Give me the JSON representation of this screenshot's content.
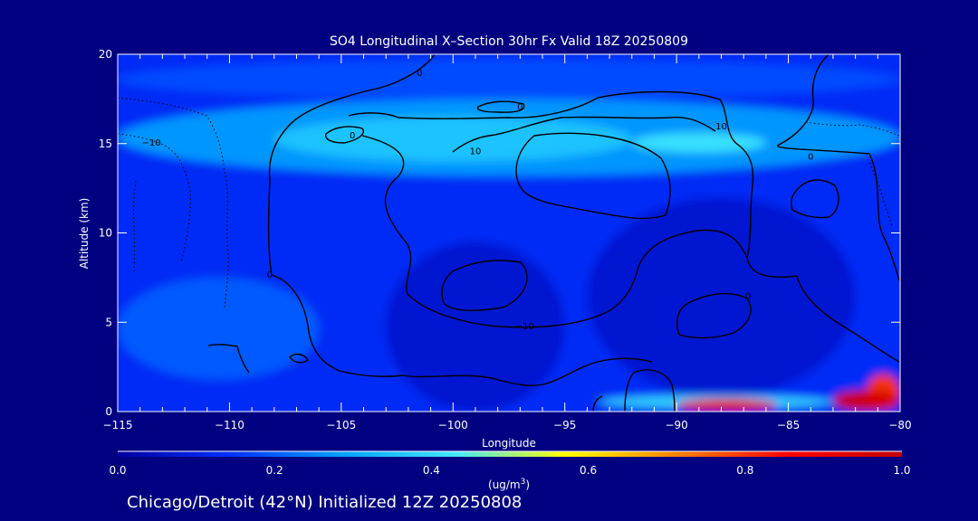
{
  "colors": {
    "background": "#000080",
    "text": "#FFFFFF",
    "contour": "#000000",
    "colorbar_stops": [
      "#0000A0",
      "#0030FF",
      "#00A0FF",
      "#40E8FF",
      "#FFFF00",
      "#FF8000",
      "#FF0000",
      "#C00000"
    ]
  },
  "chart_data": {
    "type": "heatmap",
    "title": "SO4 Longitudinal X–Section 30hr  Fx Valid 18Z 20250809",
    "xlabel": "Longitude",
    "ylabel": "Altitude (km)",
    "xlim": [
      -115,
      -80
    ],
    "ylim": [
      0,
      20
    ],
    "x_ticks": [
      -115,
      -110,
      -105,
      -100,
      -95,
      -90,
      -85,
      -80
    ],
    "x_tick_labels": [
      "−115",
      "−110",
      "−105",
      "−100",
      "−95",
      "−90",
      "−85",
      "−80"
    ],
    "y_ticks": [
      0,
      5,
      10,
      15,
      20
    ],
    "y_tick_labels": [
      "0",
      "5",
      "10",
      "15",
      "20"
    ],
    "colorbar": {
      "range": [
        0.0,
        1.0
      ],
      "ticks": [
        0.0,
        0.2,
        0.4,
        0.6,
        0.8,
        1.0
      ],
      "tick_labels": [
        "0.0",
        "0.2",
        "0.4",
        "0.6",
        "0.8",
        "1.0"
      ],
      "unit_label": "(ug/m",
      "unit_superscript": "3",
      "unit_close": ")"
    },
    "field_regions": [
      {
        "lon": [
          -115,
          -80
        ],
        "alt": [
          0,
          20
        ],
        "value": 0.13
      },
      {
        "lon": [
          -115,
          -80
        ],
        "alt": [
          13.2,
          17.5
        ],
        "value": 0.28
      },
      {
        "lon": [
          -108,
          -92
        ],
        "alt": [
          14,
          16.5
        ],
        "value": 0.36
      },
      {
        "lon": [
          -92,
          -86
        ],
        "alt": [
          14.5,
          15.6
        ],
        "value": 0.42
      },
      {
        "lon": [
          -115,
          -80
        ],
        "alt": [
          17.5,
          19.7
        ],
        "value": 0.18
      },
      {
        "lon": [
          -103,
          -95
        ],
        "alt": [
          0,
          9.5
        ],
        "value": 0.07
      },
      {
        "lon": [
          -94,
          -82
        ],
        "alt": [
          0.8,
          12
        ],
        "value": 0.07
      },
      {
        "lon": [
          -115,
          -106
        ],
        "alt": [
          1.8,
          7.5
        ],
        "value": 0.2
      },
      {
        "lon": [
          -93.5,
          -83
        ],
        "alt": [
          0.2,
          0.9
        ],
        "value": 0.4
      },
      {
        "lon": [
          -90,
          -85.5
        ],
        "alt": [
          0.05,
          0.7
        ],
        "value": 0.9
      },
      {
        "lon": [
          -81.5,
          -80
        ],
        "alt": [
          0.1,
          2.1
        ],
        "value": 0.8
      },
      {
        "lon": [
          -83,
          -80
        ],
        "alt": [
          0.05,
          1.2
        ],
        "value": 0.95
      }
    ],
    "contour_labels": [
      {
        "text": "0",
        "lon": -101.5,
        "alt": 19.0
      },
      {
        "text": "0",
        "lon": -97.0,
        "alt": 17.1
      },
      {
        "text": "0",
        "lon": -104.5,
        "alt": 15.5
      },
      {
        "text": "−10",
        "lon": -113.5,
        "alt": 15.1
      },
      {
        "text": "10",
        "lon": -99.0,
        "alt": 14.6
      },
      {
        "text": "10",
        "lon": -88.0,
        "alt": 16.0
      },
      {
        "text": "0",
        "lon": -84.0,
        "alt": 14.3
      },
      {
        "text": "0",
        "lon": -108.2,
        "alt": 7.7
      },
      {
        "text": "−10",
        "lon": -96.8,
        "alt": 4.8
      },
      {
        "text": "0",
        "lon": -86.8,
        "alt": 6.5
      }
    ],
    "footer": "Chicago/Detroit (42°N) Initialized 12Z 20250808"
  }
}
